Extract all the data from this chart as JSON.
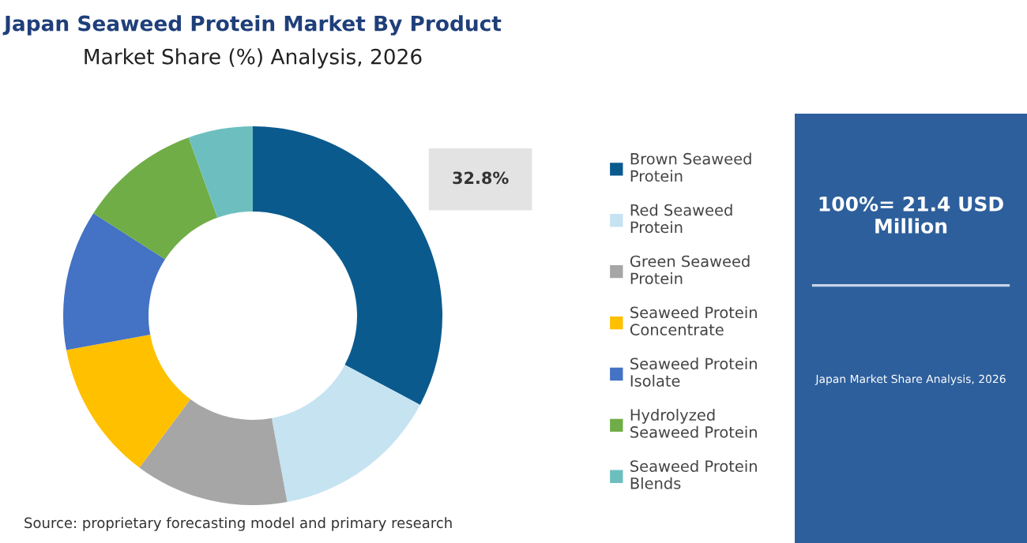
{
  "chart_data": {
    "type": "donut",
    "title": "Japan Seaweed Protein Market By Product",
    "subtitle": "Market Share (%) Analysis, 2026",
    "categories": [
      "Brown Seaweed Protein",
      "Red Seaweed Protein",
      "Green Seaweed Protein",
      "Seaweed Protein Concentrate",
      "Seaweed Protein Isolate",
      "Hydrolyzed Seaweed Protein",
      "Seaweed Protein Blends"
    ],
    "values": [
      32.8,
      14.3,
      13.1,
      11.9,
      12.0,
      10.4,
      5.5
    ],
    "colors": [
      "#0b5a8e",
      "#c6e3f2",
      "#a6a6a6",
      "#ffc000",
      "#4472c4",
      "#70ad47",
      "#6dbfbf"
    ],
    "value_labels": [
      "32.8%",
      null,
      null,
      null,
      null,
      null,
      null
    ],
    "legend": "right",
    "annotations": [
      "100%= 21.4 USD Million",
      "Japan Market Share Analysis, 2026",
      "Source: proprietary forecasting model and primary research"
    ]
  }
}
